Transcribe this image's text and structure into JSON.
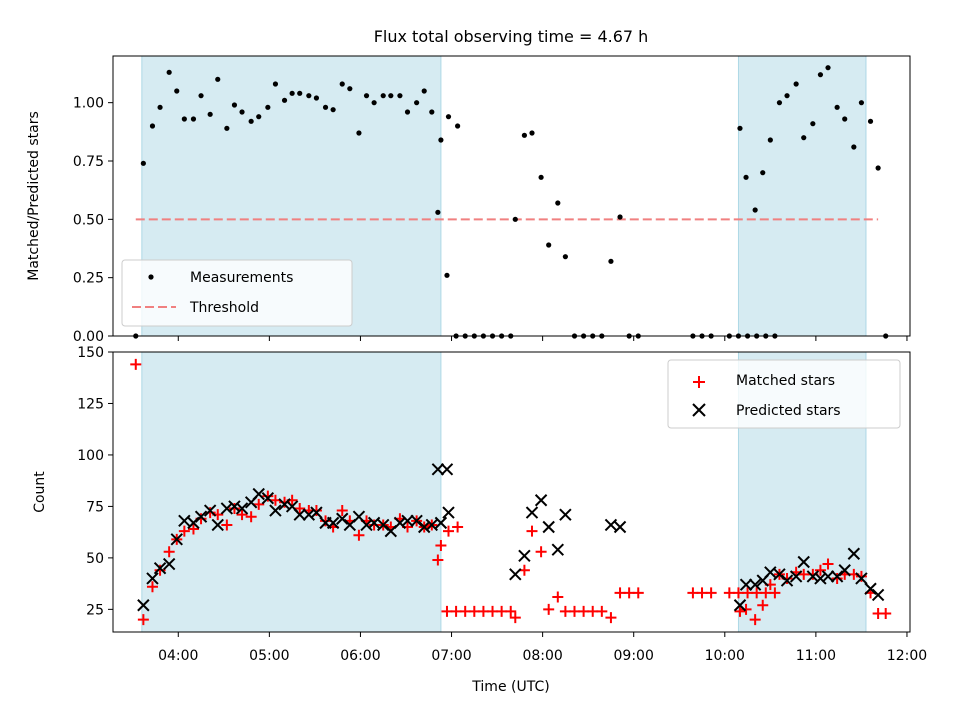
{
  "chart_data": [
    {
      "type": "scatter",
      "title": "Flux total observing time = 4.67 h",
      "ylabel": "Matched/Predicted stars",
      "xlabel": "",
      "xlim": [
        "03:17",
        "12:02"
      ],
      "ylim": [
        0,
        1.2
      ],
      "y_ticks": [
        "0.00",
        "0.25",
        "0.50",
        "0.75",
        "1.00"
      ],
      "shaded_intervals": [
        [
          "03:36",
          "06:53"
        ],
        [
          "10:09",
          "11:33"
        ]
      ],
      "legend": {
        "position": "lower-left",
        "entries": [
          "Measurements",
          "Threshold"
        ]
      },
      "series": [
        {
          "name": "Measurements",
          "style": "dot",
          "color": "#000000",
          "points": [
            [
              "03:32",
              0.0
            ],
            [
              "03:37",
              0.74
            ],
            [
              "03:43",
              0.9
            ],
            [
              "03:48",
              0.98
            ],
            [
              "03:54",
              1.13
            ],
            [
              "03:59",
              1.05
            ],
            [
              "04:04",
              0.93
            ],
            [
              "04:10",
              0.93
            ],
            [
              "04:15",
              1.03
            ],
            [
              "04:21",
              0.95
            ],
            [
              "04:26",
              1.1
            ],
            [
              "04:32",
              0.89
            ],
            [
              "04:37",
              0.99
            ],
            [
              "04:42",
              0.96
            ],
            [
              "04:48",
              0.92
            ],
            [
              "04:53",
              0.94
            ],
            [
              "04:59",
              0.98
            ],
            [
              "05:04",
              1.08
            ],
            [
              "05:10",
              1.01
            ],
            [
              "05:15",
              1.04
            ],
            [
              "05:20",
              1.04
            ],
            [
              "05:26",
              1.03
            ],
            [
              "05:31",
              1.02
            ],
            [
              "05:37",
              0.98
            ],
            [
              "05:42",
              0.97
            ],
            [
              "05:48",
              1.08
            ],
            [
              "05:53",
              1.06
            ],
            [
              "05:59",
              0.87
            ],
            [
              "06:04",
              1.03
            ],
            [
              "06:09",
              1.0
            ],
            [
              "06:15",
              1.03
            ],
            [
              "06:20",
              1.03
            ],
            [
              "06:26",
              1.03
            ],
            [
              "06:31",
              0.96
            ],
            [
              "06:37",
              1.0
            ],
            [
              "06:42",
              1.05
            ],
            [
              "06:47",
              0.96
            ],
            [
              "06:53",
              0.84
            ],
            [
              "06:58",
              0.94
            ],
            [
              "07:04",
              0.9
            ],
            [
              "06:51",
              0.53
            ],
            [
              "06:57",
              0.26
            ],
            [
              "07:03",
              0.0
            ],
            [
              "07:09",
              0.0
            ],
            [
              "07:15",
              0.0
            ],
            [
              "07:21",
              0.0
            ],
            [
              "07:27",
              0.0
            ],
            [
              "07:33",
              0.0
            ],
            [
              "07:39",
              0.0
            ],
            [
              "07:42",
              0.5
            ],
            [
              "07:48",
              0.86
            ],
            [
              "07:53",
              0.87
            ],
            [
              "07:59",
              0.68
            ],
            [
              "08:04",
              0.39
            ],
            [
              "08:10",
              0.57
            ],
            [
              "08:15",
              0.34
            ],
            [
              "08:21",
              0.0
            ],
            [
              "08:27",
              0.0
            ],
            [
              "08:33",
              0.0
            ],
            [
              "08:39",
              0.0
            ],
            [
              "08:45",
              0.32
            ],
            [
              "08:51",
              0.51
            ],
            [
              "08:57",
              0.0
            ],
            [
              "09:03",
              0.0
            ],
            [
              "09:39",
              0.0
            ],
            [
              "09:45",
              0.0
            ],
            [
              "09:51",
              0.0
            ],
            [
              "10:03",
              0.0
            ],
            [
              "10:09",
              0.0
            ],
            [
              "10:15",
              0.0
            ],
            [
              "10:21",
              0.0
            ],
            [
              "10:27",
              0.0
            ],
            [
              "10:33",
              0.0
            ],
            [
              "10:10",
              0.89
            ],
            [
              "10:14",
              0.68
            ],
            [
              "10:20",
              0.54
            ],
            [
              "10:25",
              0.7
            ],
            [
              "10:30",
              0.84
            ],
            [
              "10:36",
              1.0
            ],
            [
              "10:41",
              1.03
            ],
            [
              "10:47",
              1.08
            ],
            [
              "10:52",
              0.85
            ],
            [
              "10:58",
              0.91
            ],
            [
              "11:03",
              1.12
            ],
            [
              "11:08",
              1.15
            ],
            [
              "11:14",
              0.98
            ],
            [
              "11:19",
              0.93
            ],
            [
              "11:25",
              0.81
            ],
            [
              "11:30",
              1.0
            ],
            [
              "11:36",
              0.92
            ],
            [
              "11:41",
              0.72
            ],
            [
              "11:46",
              0.0
            ]
          ]
        },
        {
          "name": "Threshold",
          "style": "dashed-line",
          "color": "#f08080",
          "points": [
            [
              "03:32",
              0.5
            ],
            [
              "11:41",
              0.5
            ]
          ]
        }
      ]
    },
    {
      "type": "scatter",
      "title": "",
      "ylabel": "Count",
      "xlabel": "Time (UTC)",
      "xlim": [
        "03:17",
        "12:02"
      ],
      "ylim": [
        14,
        150
      ],
      "x_ticks": [
        "04:00",
        "05:00",
        "06:00",
        "07:00",
        "08:00",
        "09:00",
        "10:00",
        "11:00",
        "12:00"
      ],
      "y_ticks": [
        "25",
        "50",
        "75",
        "100",
        "125",
        "150"
      ],
      "shaded_intervals": [
        [
          "03:36",
          "06:53"
        ],
        [
          "10:09",
          "11:33"
        ]
      ],
      "legend": {
        "position": "top-right",
        "entries": [
          "Matched stars",
          "Predicted stars"
        ]
      },
      "series": [
        {
          "name": "Matched stars",
          "style": "plus",
          "color": "#ff0000",
          "points": [
            [
              "03:32",
              144
            ],
            [
              "03:37",
              20
            ],
            [
              "03:43",
              36
            ],
            [
              "03:48",
              44
            ],
            [
              "03:54",
              53
            ],
            [
              "03:59",
              59
            ],
            [
              "04:04",
              63
            ],
            [
              "04:10",
              64
            ],
            [
              "04:15",
              69
            ],
            [
              "04:21",
              72
            ],
            [
              "04:26",
              71
            ],
            [
              "04:32",
              66
            ],
            [
              "04:37",
              74
            ],
            [
              "04:42",
              71
            ],
            [
              "04:48",
              70
            ],
            [
              "04:53",
              76
            ],
            [
              "04:59",
              80
            ],
            [
              "05:04",
              78
            ],
            [
              "05:10",
              77
            ],
            [
              "05:15",
              78
            ],
            [
              "05:20",
              74
            ],
            [
              "05:26",
              73
            ],
            [
              "05:31",
              73
            ],
            [
              "05:37",
              68
            ],
            [
              "05:42",
              65
            ],
            [
              "05:48",
              73
            ],
            [
              "05:53",
              68
            ],
            [
              "05:59",
              61
            ],
            [
              "06:04",
              68
            ],
            [
              "06:09",
              66
            ],
            [
              "06:15",
              66
            ],
            [
              "06:20",
              65
            ],
            [
              "06:26",
              69
            ],
            [
              "06:31",
              65
            ],
            [
              "06:37",
              68
            ],
            [
              "06:42",
              65
            ],
            [
              "06:47",
              66
            ],
            [
              "06:53",
              56
            ],
            [
              "06:58",
              63
            ],
            [
              "07:04",
              65
            ],
            [
              "06:51",
              49
            ],
            [
              "06:57",
              24
            ],
            [
              "07:03",
              24
            ],
            [
              "07:09",
              24
            ],
            [
              "07:15",
              24
            ],
            [
              "07:21",
              24
            ],
            [
              "07:27",
              24
            ],
            [
              "07:33",
              24
            ],
            [
              "07:39",
              24
            ],
            [
              "07:42",
              21
            ],
            [
              "07:48",
              44
            ],
            [
              "07:53",
              63
            ],
            [
              "07:59",
              53
            ],
            [
              "08:04",
              25
            ],
            [
              "08:10",
              31
            ],
            [
              "08:15",
              24
            ],
            [
              "08:21",
              24
            ],
            [
              "08:27",
              24
            ],
            [
              "08:33",
              24
            ],
            [
              "08:39",
              24
            ],
            [
              "08:45",
              21
            ],
            [
              "08:51",
              33
            ],
            [
              "08:57",
              33
            ],
            [
              "09:03",
              33
            ],
            [
              "09:39",
              33
            ],
            [
              "09:45",
              33
            ],
            [
              "09:51",
              33
            ],
            [
              "10:03",
              33
            ],
            [
              "10:09",
              33
            ],
            [
              "10:15",
              33
            ],
            [
              "10:21",
              33
            ],
            [
              "10:27",
              33
            ],
            [
              "10:33",
              33
            ],
            [
              "10:10",
              24
            ],
            [
              "10:14",
              25
            ],
            [
              "10:20",
              20
            ],
            [
              "10:25",
              27
            ],
            [
              "10:30",
              37
            ],
            [
              "10:36",
              42
            ],
            [
              "10:41",
              40
            ],
            [
              "10:47",
              43
            ],
            [
              "10:52",
              42
            ],
            [
              "10:58",
              42
            ],
            [
              "11:03",
              44
            ],
            [
              "11:08",
              47
            ],
            [
              "11:14",
              40
            ],
            [
              "11:19",
              42
            ],
            [
              "11:25",
              42
            ],
            [
              "11:30",
              41
            ],
            [
              "11:36",
              33
            ],
            [
              "11:41",
              23
            ],
            [
              "11:46",
              23
            ]
          ]
        },
        {
          "name": "Predicted stars",
          "style": "cross",
          "color": "#000000",
          "points": [
            [
              "03:37",
              27
            ],
            [
              "03:43",
              40
            ],
            [
              "03:48",
              45
            ],
            [
              "03:54",
              47
            ],
            [
              "03:59",
              59
            ],
            [
              "04:04",
              68
            ],
            [
              "04:10",
              67
            ],
            [
              "04:15",
              70
            ],
            [
              "04:21",
              73
            ],
            [
              "04:26",
              66
            ],
            [
              "04:32",
              74
            ],
            [
              "04:37",
              75
            ],
            [
              "04:42",
              74
            ],
            [
              "04:48",
              77
            ],
            [
              "04:53",
              81
            ],
            [
              "04:59",
              79
            ],
            [
              "05:04",
              73
            ],
            [
              "05:10",
              76
            ],
            [
              "05:15",
              75
            ],
            [
              "05:20",
              71
            ],
            [
              "05:26",
              71
            ],
            [
              "05:31",
              72
            ],
            [
              "05:37",
              67
            ],
            [
              "05:42",
              67
            ],
            [
              "05:48",
              69
            ],
            [
              "05:53",
              66
            ],
            [
              "05:59",
              70
            ],
            [
              "06:04",
              66
            ],
            [
              "06:09",
              67
            ],
            [
              "06:15",
              66
            ],
            [
              "06:20",
              63
            ],
            [
              "06:26",
              67
            ],
            [
              "06:31",
              68
            ],
            [
              "06:37",
              68
            ],
            [
              "06:42",
              65
            ],
            [
              "06:47",
              66
            ],
            [
              "06:53",
              67
            ],
            [
              "06:58",
              72
            ],
            [
              "06:51",
              93
            ],
            [
              "06:57",
              93
            ],
            [
              "07:42",
              42
            ],
            [
              "07:48",
              51
            ],
            [
              "07:53",
              72
            ],
            [
              "07:59",
              78
            ],
            [
              "08:04",
              65
            ],
            [
              "08:10",
              54
            ],
            [
              "08:15",
              71
            ],
            [
              "08:45",
              66
            ],
            [
              "08:51",
              65
            ],
            [
              "10:10",
              27
            ],
            [
              "10:14",
              37
            ],
            [
              "10:20",
              37
            ],
            [
              "10:25",
              39
            ],
            [
              "10:30",
              43
            ],
            [
              "10:36",
              42
            ],
            [
              "10:41",
              39
            ],
            [
              "10:47",
              41
            ],
            [
              "10:52",
              48
            ],
            [
              "10:58",
              41
            ],
            [
              "11:03",
              40
            ],
            [
              "11:08",
              41
            ],
            [
              "11:14",
              41
            ],
            [
              "11:19",
              44
            ],
            [
              "11:25",
              52
            ],
            [
              "11:30",
              40
            ],
            [
              "11:36",
              35
            ],
            [
              "11:41",
              32
            ]
          ]
        }
      ]
    }
  ]
}
